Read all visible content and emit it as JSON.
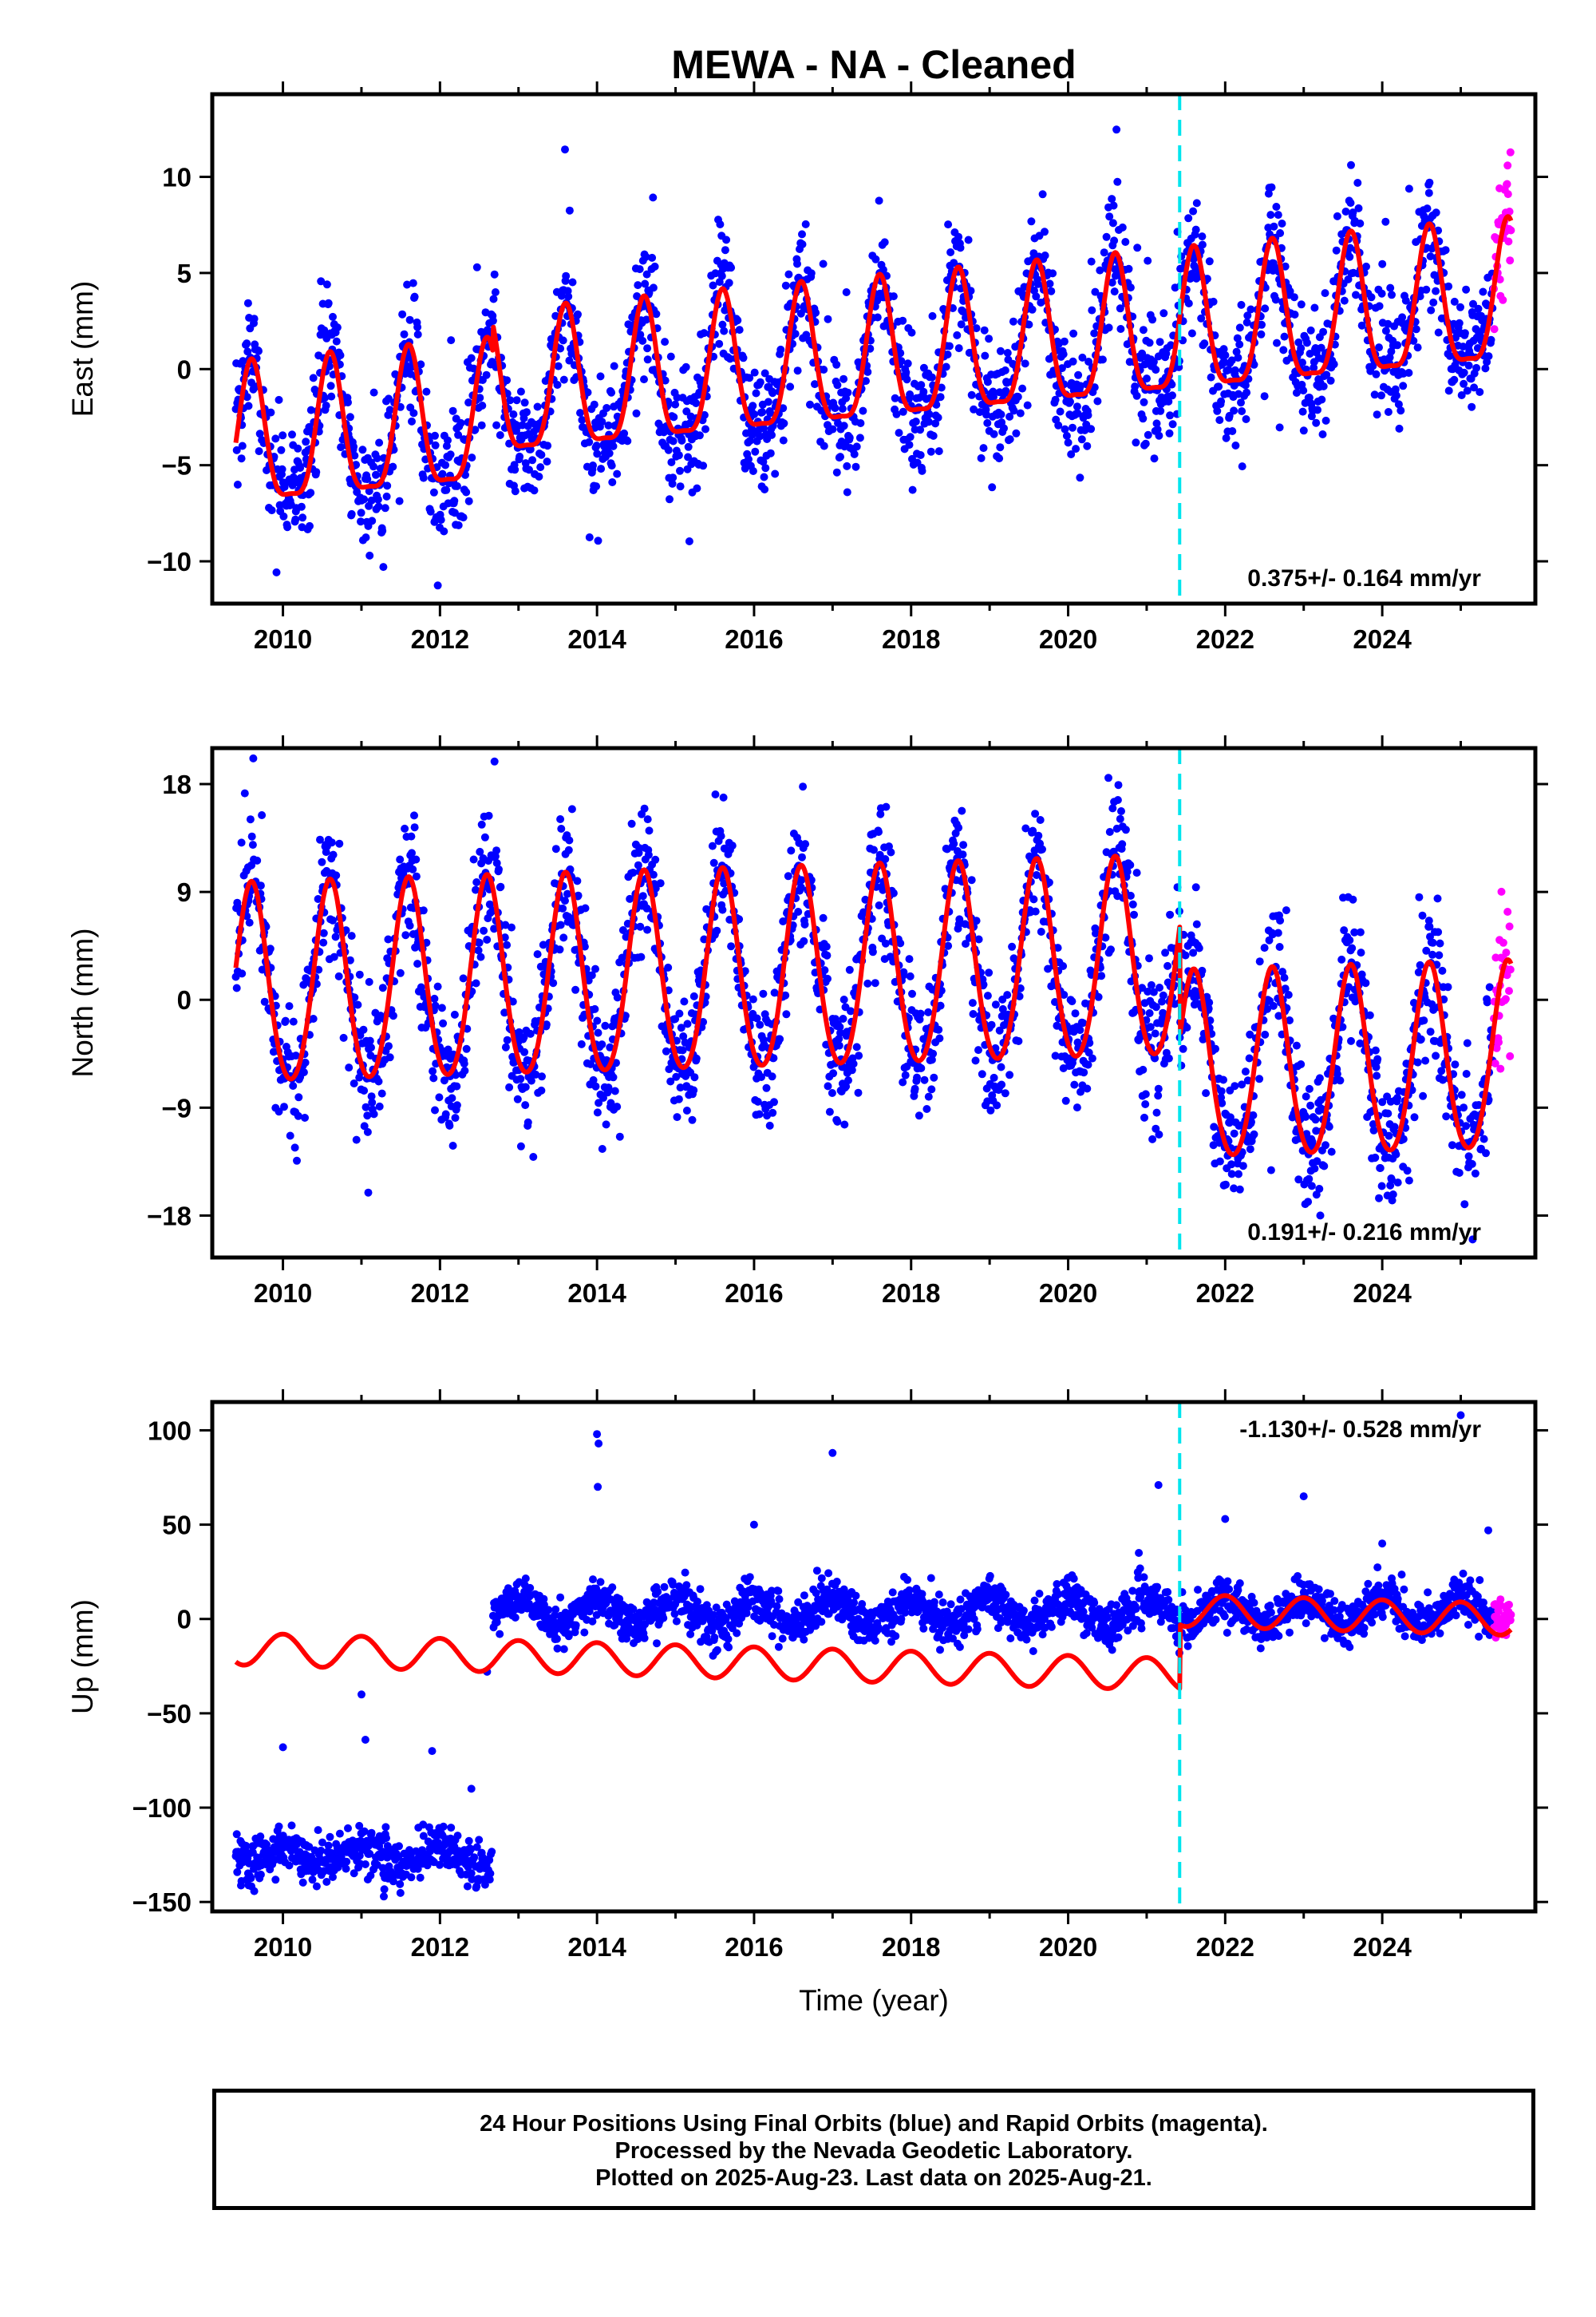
{
  "figure": {
    "title": "MEWA  - NA - Cleaned",
    "xlabel": "Time (year)",
    "footer_lines": [
      "24 Hour Positions Using Final Orbits (blue) and Rapid Orbits (magenta).",
      "Processed by the Nevada Geodetic Laboratory.",
      "Plotted on 2025-Aug-23. Last data on 2025-Aug-21."
    ],
    "colors": {
      "final_orbits": "#0000ff",
      "rapid_orbits": "#ff00ff",
      "model_fit": "#ff0000",
      "equipment_change": "#00e5ee"
    }
  },
  "chart_data": [
    {
      "type": "scatter",
      "panel": "east",
      "ylabel": "East (mm)",
      "xlim": [
        2009.1,
        2025.95
      ],
      "ylim": [
        -12.2,
        14.3
      ],
      "x_ticks": [
        2010,
        2012,
        2014,
        2016,
        2018,
        2020,
        2022,
        2024
      ],
      "x_tick_labels": [
        "2010",
        "2012",
        "2014",
        "2016",
        "2018",
        "2020",
        "2022",
        "2024"
      ],
      "y_ticks": [
        10,
        5,
        0,
        -5,
        -10
      ],
      "y_tick_labels": [
        "10",
        "5",
        "0",
        "−5",
        "−10"
      ],
      "rate_label": "0.375+/- 0.164 mm/yr",
      "rate_position": "bottom-right",
      "equipment_change_year": 2021.42,
      "data_start": 2009.4,
      "data_end": 2025.64,
      "rapid_start": 2025.42,
      "model": {
        "segments": [
          {
            "start": 2009.4,
            "end": 2012.67,
            "offset": -1.1,
            "trend": 0.375,
            "annual_amp": 3.6,
            "semiannual_amp": 1.0
          },
          {
            "start": 2012.67,
            "end": 2025.64,
            "offset": 0.3,
            "trend": 0.375,
            "annual_amp": 3.6,
            "semiannual_amp": 1.0
          }
        ],
        "peak_year_fraction": 0.6
      },
      "scatter_sd": 1.6
    },
    {
      "type": "scatter",
      "panel": "north",
      "ylabel": "North (mm)",
      "xlim": [
        2009.1,
        2025.95
      ],
      "ylim": [
        -21.5,
        21.0
      ],
      "x_ticks": [
        2010,
        2012,
        2014,
        2016,
        2018,
        2020,
        2022,
        2024
      ],
      "x_tick_labels": [
        "2010",
        "2012",
        "2014",
        "2016",
        "2018",
        "2020",
        "2022",
        "2024"
      ],
      "y_ticks": [
        18,
        9,
        0,
        -9,
        -18
      ],
      "y_tick_labels": [
        "18",
        "9",
        "0",
        "−9",
        "−18"
      ],
      "rate_label": "0.191+/- 0.216 mm/yr",
      "rate_position": "bottom-right",
      "equipment_change_year": 2021.42,
      "data_start": 2009.4,
      "data_end": 2025.64,
      "rapid_start": 2025.42,
      "model": {
        "segments": [
          {
            "start": 2009.4,
            "end": 2021.42,
            "offset": 2.3,
            "trend": 0.191,
            "annual_amp": 8.3,
            "semiannual_amp": 0.8
          },
          {
            "start": 2021.42,
            "end": 2025.64,
            "offset": -6.8,
            "trend": 0.191,
            "annual_amp": 7.8,
            "semiannual_amp": 0.8
          }
        ],
        "peak_year_fraction": 0.6
      },
      "scatter_sd": 2.8
    },
    {
      "type": "scatter",
      "panel": "up",
      "ylabel": "Up (mm)",
      "xlim": [
        2009.1,
        2025.95
      ],
      "ylim": [
        -155,
        115
      ],
      "x_ticks": [
        2010,
        2012,
        2014,
        2016,
        2018,
        2020,
        2022,
        2024
      ],
      "x_tick_labels": [
        "2010",
        "2012",
        "2014",
        "2016",
        "2018",
        "2020",
        "2022",
        "2024"
      ],
      "y_ticks": [
        100,
        50,
        0,
        -50,
        -100,
        -150
      ],
      "y_tick_labels": [
        "100",
        "50",
        "0",
        "−50",
        "−100",
        "−150"
      ],
      "rate_label": "-1.130+/- 0.528 mm/yr",
      "rate_position": "top-right",
      "equipment_change_year": 2021.42,
      "data_start": 2009.4,
      "data_end": 2025.64,
      "rapid_start": 2025.42,
      "model": {
        "segments": [
          {
            "start": 2009.4,
            "end": 2021.42,
            "offset": -25,
            "trend": -1.13,
            "annual_amp": 8.5,
            "semiannual_amp": 0.0
          },
          {
            "start": 2021.42,
            "end": 2025.64,
            "offset": 9,
            "trend": -1.13,
            "annual_amp": 8.5,
            "semiannual_amp": 0.0
          }
        ],
        "peak_year_fraction": 0.0
      },
      "data_segments": [
        {
          "start": 2009.4,
          "end": 2012.67,
          "level": -125,
          "annual_amp": 5,
          "sd": 6
        },
        {
          "start": 2012.67,
          "end": 2025.64,
          "level": 4,
          "annual_amp": 7,
          "sd": 6
        }
      ],
      "outliers": [
        [
          2014.0,
          98
        ],
        [
          2014.02,
          93
        ],
        [
          2014.01,
          70
        ],
        [
          2017.0,
          88
        ],
        [
          2016.0,
          50
        ],
        [
          2022.0,
          53
        ],
        [
          2023.0,
          65
        ],
        [
          2025.0,
          108
        ],
        [
          2021.15,
          71
        ],
        [
          2011.0,
          -40
        ],
        [
          2011.05,
          -64
        ],
        [
          2010.0,
          -68
        ],
        [
          2011.9,
          -70
        ],
        [
          2012.4,
          -90
        ],
        [
          2012.6,
          -28
        ],
        [
          2025.35,
          47
        ],
        [
          2024.0,
          40
        ],
        [
          2020.9,
          35
        ]
      ]
    }
  ]
}
